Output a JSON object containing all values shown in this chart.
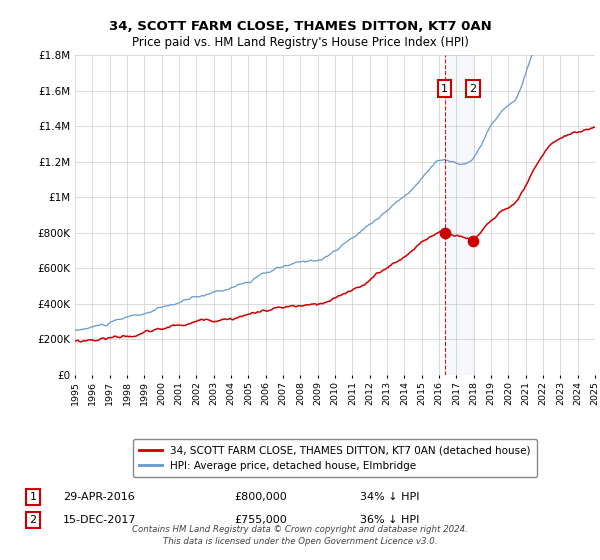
{
  "title": "34, SCOTT FARM CLOSE, THAMES DITTON, KT7 0AN",
  "subtitle": "Price paid vs. HM Land Registry's House Price Index (HPI)",
  "red_label": "34, SCOTT FARM CLOSE, THAMES DITTON, KT7 0AN (detached house)",
  "blue_label": "HPI: Average price, detached house, Elmbridge",
  "transaction1_date": 2016.33,
  "transaction1_price": 800000,
  "transaction2_date": 2017.96,
  "transaction2_price": 755000,
  "footer_line1": "Contains HM Land Registry data © Crown copyright and database right 2024.",
  "footer_line2": "This data is licensed under the Open Government Licence v3.0.",
  "red_color": "#cc0000",
  "blue_color": "#6699cc",
  "background_color": "#ffffff",
  "grid_color": "#cccccc",
  "xmin": 1995,
  "xmax": 2025,
  "ymin": 0,
  "ymax": 1800000,
  "yticks": [
    0,
    200000,
    400000,
    600000,
    800000,
    1000000,
    1200000,
    1400000,
    1600000,
    1800000
  ],
  "ylabels": [
    "£0",
    "£200K",
    "£400K",
    "£600K",
    "£800K",
    "£1M",
    "£1.2M",
    "£1.4M",
    "£1.6M",
    "£1.8M"
  ]
}
